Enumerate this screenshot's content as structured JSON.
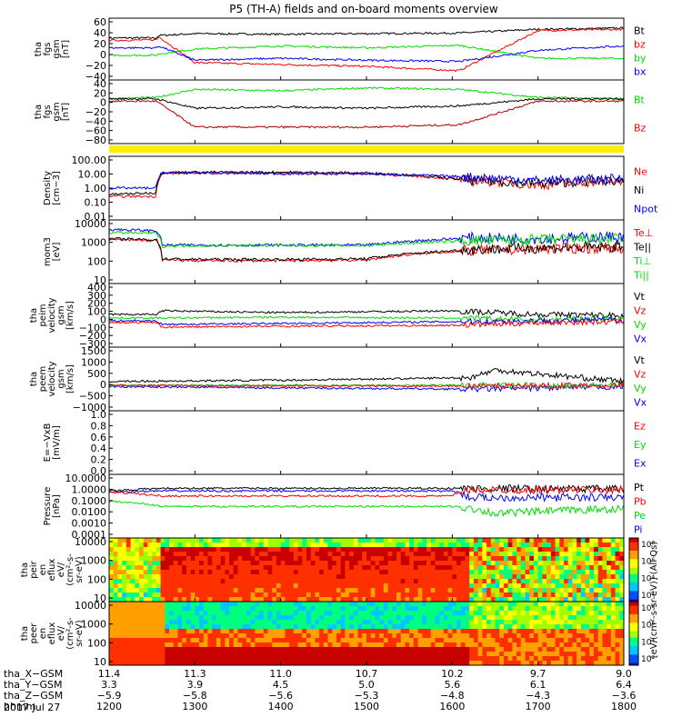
{
  "title": "P5 (TH-A) fields and on-board moments overview",
  "chart_data": {
    "type": "line",
    "x": {
      "tick_labels": [
        "1200",
        "1300",
        "1400",
        "1500",
        "1600",
        "1700",
        "1800"
      ],
      "range": [
        1200,
        1800
      ]
    },
    "panels": [
      {
        "ylabel": [
          "tha",
          "fgs",
          "gsm",
          "[nT]"
        ],
        "ticks": [
          "60",
          "40",
          "20",
          "0",
          "−20",
          "−40"
        ],
        "ylim": [
          -40,
          60
        ],
        "scale": "linear",
        "legend": [
          {
            "name": "Bt",
            "color": "#000000"
          },
          {
            "name": "bz",
            "color": "#ff0000"
          },
          {
            "name": "by",
            "color": "#00dd00"
          },
          {
            "name": "bx",
            "color": "#0000ff"
          }
        ],
        "series": [
          {
            "name": "Bt",
            "color": "#000000",
            "x": [
              1200,
              1255,
              1258,
              1300,
              1400,
              1500,
              1608,
              1700,
              1800
            ],
            "y": [
              28,
              28,
              32,
              35,
              34,
              35,
              36,
              42,
              44
            ]
          },
          {
            "name": "bz",
            "color": "#ff0000",
            "x": [
              1200,
              1255,
              1258,
              1300,
              1400,
              1500,
              1608,
              1700,
              1800
            ],
            "y": [
              24,
              25,
              30,
              -12,
              -15,
              -18,
              -25,
              40,
              42
            ]
          },
          {
            "name": "by",
            "color": "#00dd00",
            "x": [
              1200,
              1255,
              1258,
              1300,
              1400,
              1500,
              1608,
              1700,
              1800
            ],
            "y": [
              0,
              0,
              2,
              10,
              15,
              12,
              16,
              -5,
              -5
            ]
          },
          {
            "name": "bx",
            "color": "#0000ff",
            "x": [
              1200,
              1255,
              1258,
              1300,
              1400,
              1500,
              1608,
              1700,
              1800
            ],
            "y": [
              12,
              12,
              15,
              -8,
              -5,
              -8,
              -10,
              8,
              15
            ]
          }
        ]
      },
      {
        "ylabel": [
          "tha",
          "fgs",
          "gsm",
          "[nT]"
        ],
        "ticks": [
          "40",
          "20",
          "0",
          "−20",
          "−40",
          "−60",
          "−80"
        ],
        "ylim": [
          -90,
          45
        ],
        "scale": "linear",
        "legend": [
          {
            "name": "Bt",
            "color": "#00dd00"
          },
          {
            "name": "Bz",
            "color": "#ff0000"
          }
        ],
        "series": [
          {
            "name": "green",
            "color": "#00dd00",
            "x": [
              1200,
              1255,
              1300,
              1400,
              1500,
              1608,
              1700,
              1800
            ],
            "y": [
              5,
              8,
              25,
              22,
              28,
              25,
              8,
              5
            ]
          },
          {
            "name": "black",
            "color": "#000000",
            "x": [
              1200,
              1255,
              1300,
              1400,
              1500,
              1608,
              1700,
              1800
            ],
            "y": [
              5,
              5,
              -15,
              -12,
              -15,
              -10,
              5,
              5
            ]
          },
          {
            "name": "darkred",
            "color": "#aa0000",
            "x": [
              1200,
              1255,
              1300,
              1400,
              1500,
              1608,
              1700,
              1800
            ],
            "y": [
              0,
              0,
              -55,
              -55,
              -55,
              -50,
              0,
              0
            ]
          }
        ]
      },
      {
        "ylabel": [
          "Density",
          "[cm−3]"
        ],
        "ticks": [
          "100.00",
          "10.00",
          "1.00",
          "0.10",
          "0.01"
        ],
        "ylim": [
          0.01,
          100
        ],
        "scale": "log",
        "legend": [
          {
            "name": "Ne",
            "color": "#ff0000"
          },
          {
            "name": "Ni",
            "color": "#000000"
          },
          {
            "name": "Npot",
            "color": "#0000ff"
          }
        ],
        "series": [
          {
            "name": "Ne",
            "color": "#ff0000",
            "x": [
              1200,
              1255,
              1262,
              1300,
              1400,
              1500,
              1620,
              1700,
              1800
            ],
            "y": [
              0.3,
              0.3,
              8,
              9,
              9,
              8,
              3,
              1.5,
              3
            ]
          },
          {
            "name": "Ni",
            "color": "#000000",
            "x": [
              1200,
              1255,
              1262,
              1300,
              1400,
              1500,
              1620,
              1700,
              1800
            ],
            "y": [
              0.4,
              0.5,
              10,
              10,
              10,
              9,
              3,
              2,
              3
            ]
          },
          {
            "name": "Npot",
            "color": "#0000ff",
            "x": [
              1200,
              1255,
              1262,
              1300,
              1400,
              1500,
              1620,
              1700,
              1800
            ],
            "y": [
              1,
              1,
              9,
              9,
              8,
              8,
              5,
              3,
              4
            ]
          }
        ]
      },
      {
        "ylabel": [
          "mom3",
          "[eV]"
        ],
        "ticks": [
          "10000",
          "1000",
          "100",
          "10"
        ],
        "ylim": [
          3,
          10000
        ],
        "scale": "log",
        "legend": [
          {
            "name": "Te⊥",
            "color": "#ff0000"
          },
          {
            "name": "Te||",
            "color": "#000000"
          },
          {
            "name": "Ti⊥",
            "color": "#00dd00"
          },
          {
            "name": "Ti||",
            "color": "#00dd00"
          }
        ],
        "series": [
          {
            "name": "Ti",
            "color": "#0000ff",
            "x": [
              1200,
              1255,
              1262,
              1300,
              1400,
              1500,
              1620,
              1700,
              1800
            ],
            "y": [
              3000,
              2500,
              400,
              400,
              400,
              400,
              1000,
              900,
              1200
            ]
          },
          {
            "name": "Te⊥",
            "color": "#ff0000",
            "x": [
              1200,
              1255,
              1262,
              1300,
              1400,
              1500,
              1620,
              1700,
              1800
            ],
            "y": [
              800,
              700,
              60,
              55,
              55,
              60,
              200,
              250,
              300
            ]
          },
          {
            "name": "Te||",
            "color": "#000000",
            "x": [
              1200,
              1255,
              1262,
              1300,
              1400,
              1500,
              1620,
              1700,
              1800
            ],
            "y": [
              900,
              800,
              70,
              65,
              65,
              70,
              220,
              280,
              320
            ]
          },
          {
            "name": "Ti⊥",
            "color": "#00dd00",
            "x": [
              1200,
              1255,
              1262,
              1300,
              1400,
              1500,
              1620,
              1700,
              1800
            ],
            "y": [
              2000,
              1800,
              350,
              380,
              380,
              380,
              700,
              800,
              900
            ]
          }
        ]
      },
      {
        "ylabel": [
          "tha",
          "peim",
          "velocity",
          "gsm",
          "[km/s]"
        ],
        "ticks": [
          "400",
          "300",
          "200",
          "100",
          "0",
          "−100",
          "−200",
          "−300"
        ],
        "ylim": [
          -300,
          400
        ],
        "scale": "linear",
        "legend": [
          {
            "name": "Vt",
            "color": "#000000"
          },
          {
            "name": "Vz",
            "color": "#ff0000"
          },
          {
            "name": "Vy",
            "color": "#00dd00"
          },
          {
            "name": "Vx",
            "color": "#0000ff"
          }
        ],
        "series": [
          {
            "name": "Vt",
            "color": "#000000",
            "x": [
              1200,
              1255,
              1262,
              1400,
              1600,
              1700,
              1800
            ],
            "y": [
              60,
              60,
              100,
              80,
              100,
              60,
              50
            ]
          },
          {
            "name": "Vy",
            "color": "#00dd00",
            "x": [
              1200,
              1255,
              1262,
              1400,
              1600,
              1700,
              1800
            ],
            "y": [
              20,
              20,
              20,
              30,
              20,
              0,
              20
            ]
          },
          {
            "name": "Vx",
            "color": "#0000ff",
            "x": [
              1200,
              1255,
              1262,
              1400,
              1600,
              1700,
              1800
            ],
            "y": [
              -10,
              -10,
              -50,
              -40,
              -20,
              -10,
              0
            ]
          },
          {
            "name": "Vz",
            "color": "#ff0000",
            "x": [
              1200,
              1255,
              1262,
              1400,
              1600,
              1700,
              1800
            ],
            "y": [
              -30,
              -30,
              -80,
              -70,
              -60,
              -30,
              -20
            ]
          }
        ]
      },
      {
        "ylabel": [
          "tha",
          "peem",
          "velocity",
          "gsm",
          "[km/s]"
        ],
        "ticks": [
          "1500",
          "1000",
          "500",
          "0",
          "−500",
          "−1000"
        ],
        "ylim": [
          -1000,
          1500
        ],
        "scale": "linear",
        "legend": [
          {
            "name": "Vt",
            "color": "#000000"
          },
          {
            "name": "Vz",
            "color": "#ff0000"
          },
          {
            "name": "Vy",
            "color": "#00dd00"
          },
          {
            "name": "Vx",
            "color": "#0000ff"
          }
        ],
        "series": [
          {
            "name": "Vt",
            "color": "#000000",
            "x": [
              1200,
              1400,
              1620,
              1650,
              1800
            ],
            "y": [
              150,
              200,
              300,
              600,
              150
            ]
          },
          {
            "name": "Vx",
            "color": "#0000ff",
            "x": [
              1200,
              1400,
              1620,
              1800
            ],
            "y": [
              -50,
              -100,
              -150,
              -50
            ]
          },
          {
            "name": "Vy",
            "color": "#00dd00",
            "x": [
              1200,
              1400,
              1620,
              1800
            ],
            "y": [
              0,
              0,
              0,
              0
            ]
          },
          {
            "name": "Vz",
            "color": "#ff0000",
            "x": [
              1200,
              1400,
              1620,
              1800
            ],
            "y": [
              0,
              -20,
              -30,
              0
            ]
          }
        ]
      },
      {
        "ylabel": [
          "E=−VxB",
          "[mV/m]"
        ],
        "ticks": [
          "1.0",
          "0.8",
          "0.6",
          "0.4",
          "0.2",
          "0.0"
        ],
        "ylim": [
          0,
          1
        ],
        "scale": "linear",
        "legend": [
          {
            "name": "Ez",
            "color": "#ff0000"
          },
          {
            "name": "Ey",
            "color": "#00dd00"
          },
          {
            "name": "Ex",
            "color": "#0000ff"
          }
        ],
        "series": []
      },
      {
        "ylabel": [
          "Pressure",
          "[nPa]"
        ],
        "ticks": [
          "10.0000",
          "1.0000",
          "0.1000",
          "0.0100",
          "0.0010",
          "0.0001"
        ],
        "ylim": [
          0.0001,
          10
        ],
        "scale": "log",
        "legend": [
          {
            "name": "Pt",
            "color": "#000000"
          },
          {
            "name": "Pb",
            "color": "#ff0000"
          },
          {
            "name": "Pe",
            "color": "#00dd00"
          },
          {
            "name": "Pi",
            "color": "#0000ff"
          }
        ],
        "series": [
          {
            "name": "Pt",
            "color": "#000000",
            "x": [
              1200,
              1262,
              1600,
              1800
            ],
            "y": [
              0.5,
              0.8,
              0.8,
              0.7
            ]
          },
          {
            "name": "Pi",
            "color": "#0000ff",
            "x": [
              1200,
              1262,
              1600,
              1620,
              1800
            ],
            "y": [
              0.4,
              0.5,
              0.5,
              0.15,
              0.15
            ]
          },
          {
            "name": "Pb",
            "color": "#ff0000",
            "x": [
              1200,
              1262,
              1600,
              1620,
              1800
            ],
            "y": [
              0.4,
              0.2,
              0.2,
              0.6,
              0.6
            ]
          },
          {
            "name": "Pe",
            "color": "#00dd00",
            "x": [
              1200,
              1262,
              1600,
              1650,
              1800
            ],
            "y": [
              0.08,
              0.03,
              0.03,
              0.008,
              0.02
            ]
          }
        ]
      },
      {
        "type": "heatmap",
        "ylabel": [
          "tha",
          "peir",
          "en",
          "eflux",
          "eV/",
          "(cm²-s-",
          "sr-eV)"
        ],
        "ticks": [
          "10000",
          "1000",
          "100",
          "10"
        ],
        "ylim": [
          5,
          25000
        ],
        "scale": "log",
        "colorbar_labels": [
          "10⁸",
          "10⁶",
          "10⁴",
          "10²"
        ]
      },
      {
        "type": "heatmap",
        "ylabel": [
          "tha",
          "peer",
          "en",
          "eflux",
          "eV/",
          "(cm²-s-",
          "sr-eV)"
        ],
        "ticks": [
          "10000",
          "1000",
          "100",
          "10"
        ],
        "ylim": [
          5,
          25000
        ],
        "scale": "log",
        "colorbar_labels": [
          "10⁸",
          "10⁶",
          "10⁴",
          "10²"
        ]
      }
    ],
    "colorbar_title": "[eV/(cm²-s-sr-eV)] (All Qs)",
    "orbit_rows": [
      {
        "label": "tha_X−GSM",
        "values": [
          "11.4",
          "11.3",
          "11.0",
          "10.7",
          "10.2",
          "9.7",
          "9.0"
        ]
      },
      {
        "label": "tha_Y−GSM",
        "values": [
          "3.3",
          "3.9",
          "4.5",
          "5.0",
          "5.6",
          "6.1",
          "6.4"
        ]
      },
      {
        "label": "tha_Z−GSM",
        "values": [
          "−5.9",
          "−5.8",
          "−5.6",
          "−5.3",
          "−4.8",
          "−4.3",
          "−3.6"
        ]
      },
      {
        "label": "hhmm",
        "values": [
          "1200",
          "1300",
          "1400",
          "1500",
          "1600",
          "1700",
          "1800"
        ]
      }
    ],
    "date_label": "2017 Jul 27"
  }
}
